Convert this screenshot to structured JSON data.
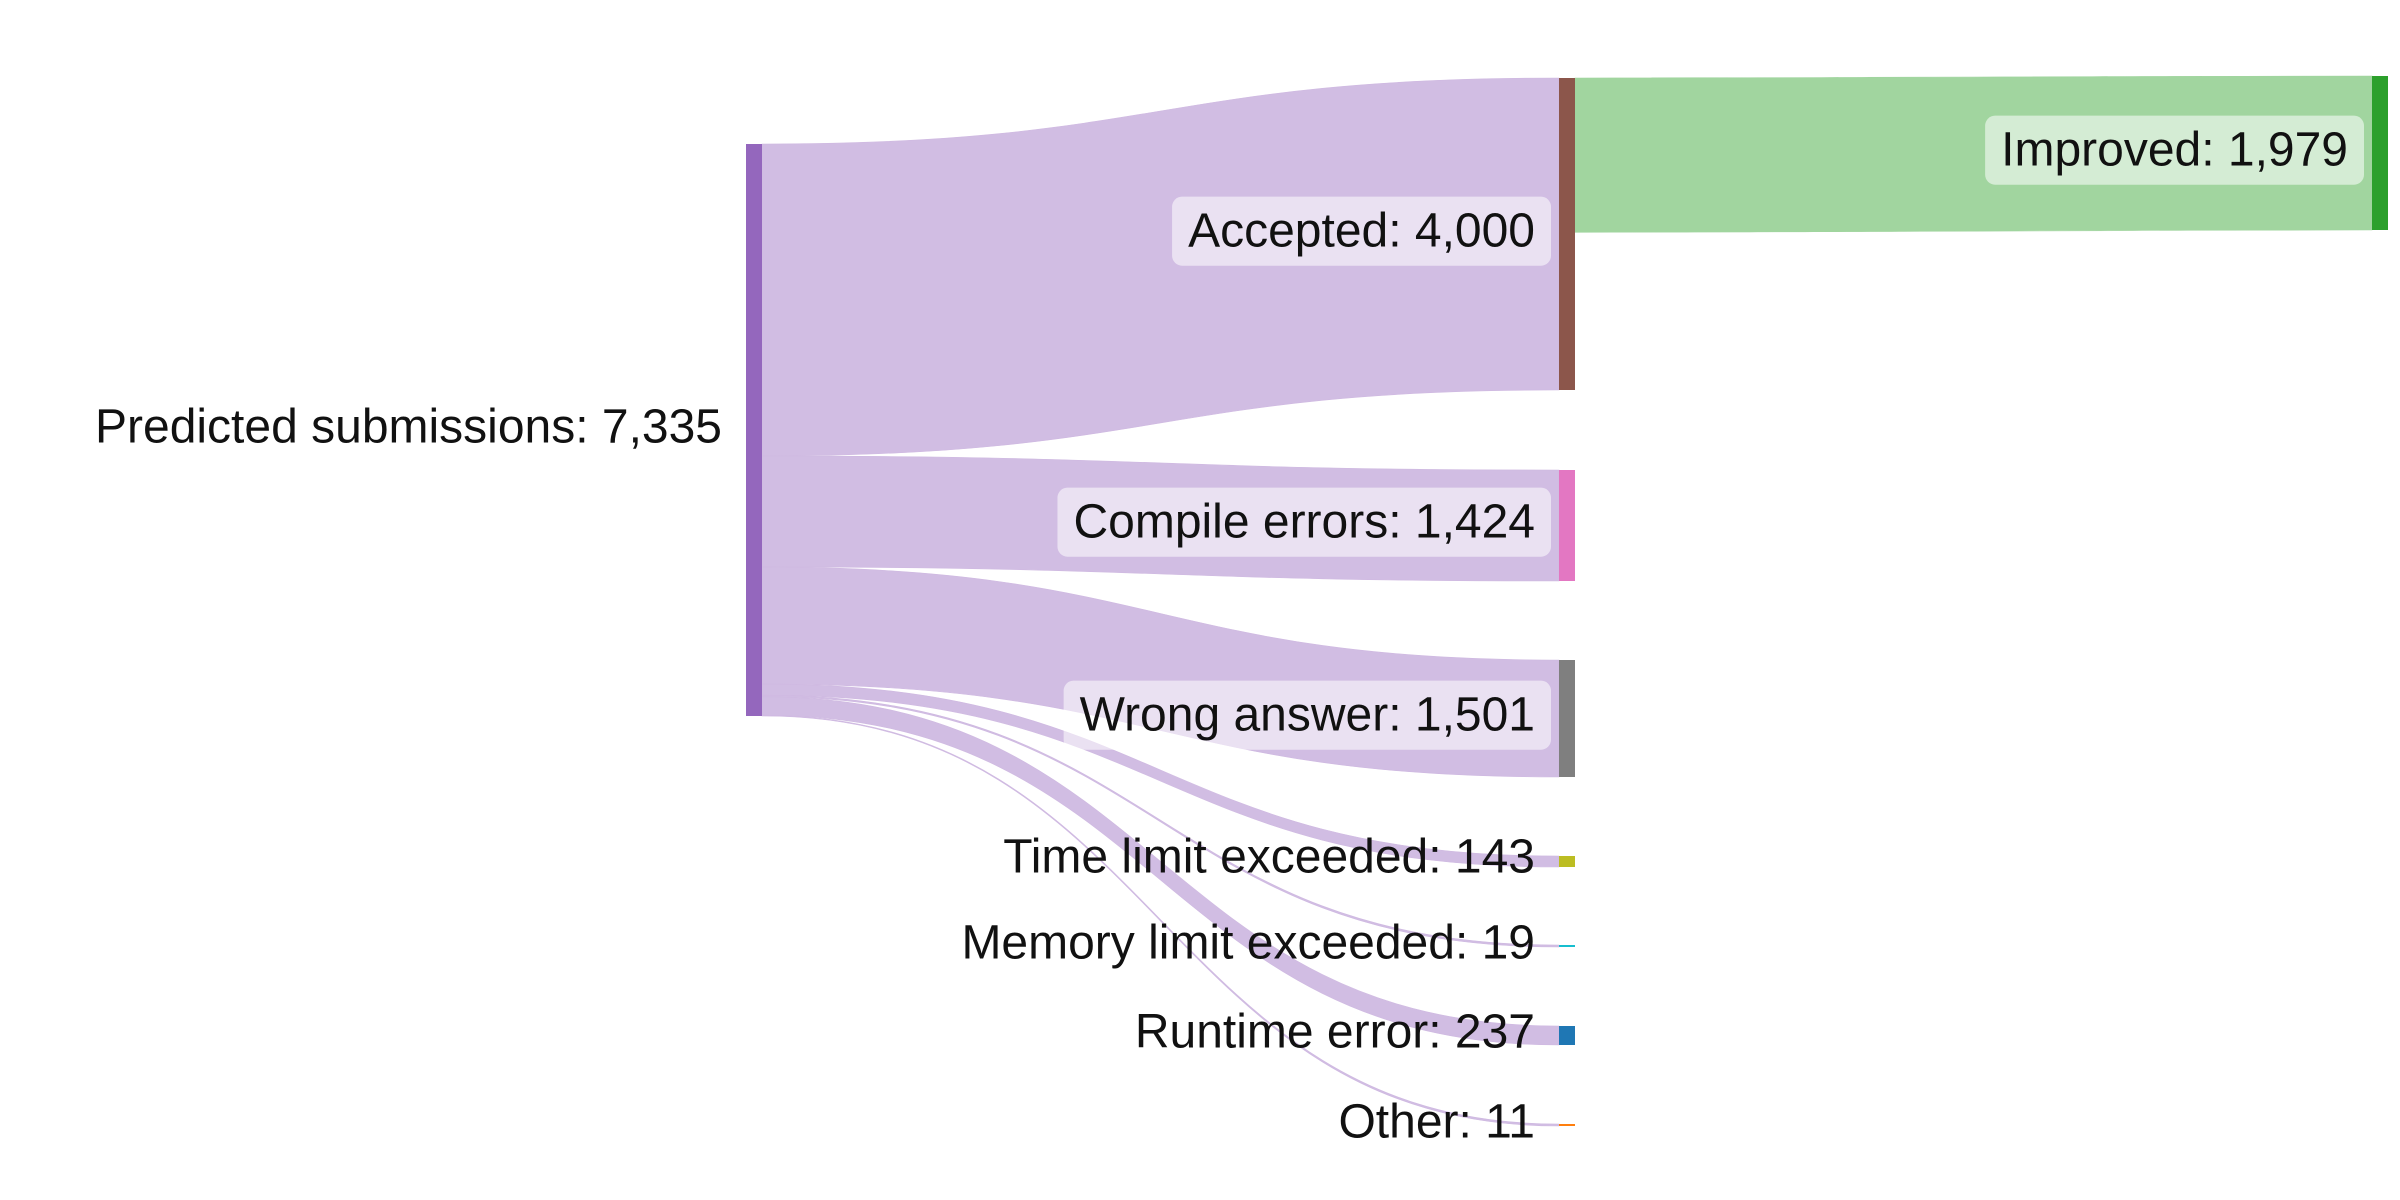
{
  "chart_data": {
    "type": "sankey",
    "nodes": [
      {
        "id": "predicted",
        "label": "Predicted submissions: 7,335",
        "value": 7335,
        "color": "#9467bd"
      },
      {
        "id": "accepted",
        "label": "Accepted: 4,000",
        "value": 4000,
        "color": "#8c564b"
      },
      {
        "id": "compile",
        "label": "Compile errors: 1,424",
        "value": 1424,
        "color": "#e377c2"
      },
      {
        "id": "wrong",
        "label": "Wrong answer: 1,501",
        "value": 1501,
        "color": "#7f7f7f"
      },
      {
        "id": "tle",
        "label": "Time limit exceeded: 143",
        "value": 143,
        "color": "#bcbd22"
      },
      {
        "id": "mle",
        "label": "Memory limit exceeded: 19",
        "value": 19,
        "color": "#17becf"
      },
      {
        "id": "runtime",
        "label": "Runtime error: 237",
        "value": 237,
        "color": "#1f77b4"
      },
      {
        "id": "other",
        "label": "Other: 11",
        "value": 11,
        "color": "#ff7f0e"
      },
      {
        "id": "improved",
        "label": "Improved: 1,979",
        "value": 1979,
        "color": "#2ca02c"
      }
    ],
    "links": [
      {
        "source": "predicted",
        "target": "accepted",
        "value": 4000
      },
      {
        "source": "predicted",
        "target": "compile",
        "value": 1424
      },
      {
        "source": "predicted",
        "target": "wrong",
        "value": 1501
      },
      {
        "source": "predicted",
        "target": "tle",
        "value": 143
      },
      {
        "source": "predicted",
        "target": "mle",
        "value": 19
      },
      {
        "source": "predicted",
        "target": "runtime",
        "value": 237
      },
      {
        "source": "predicted",
        "target": "other",
        "value": 11
      },
      {
        "source": "accepted",
        "target": "improved",
        "value": 1979
      }
    ]
  }
}
